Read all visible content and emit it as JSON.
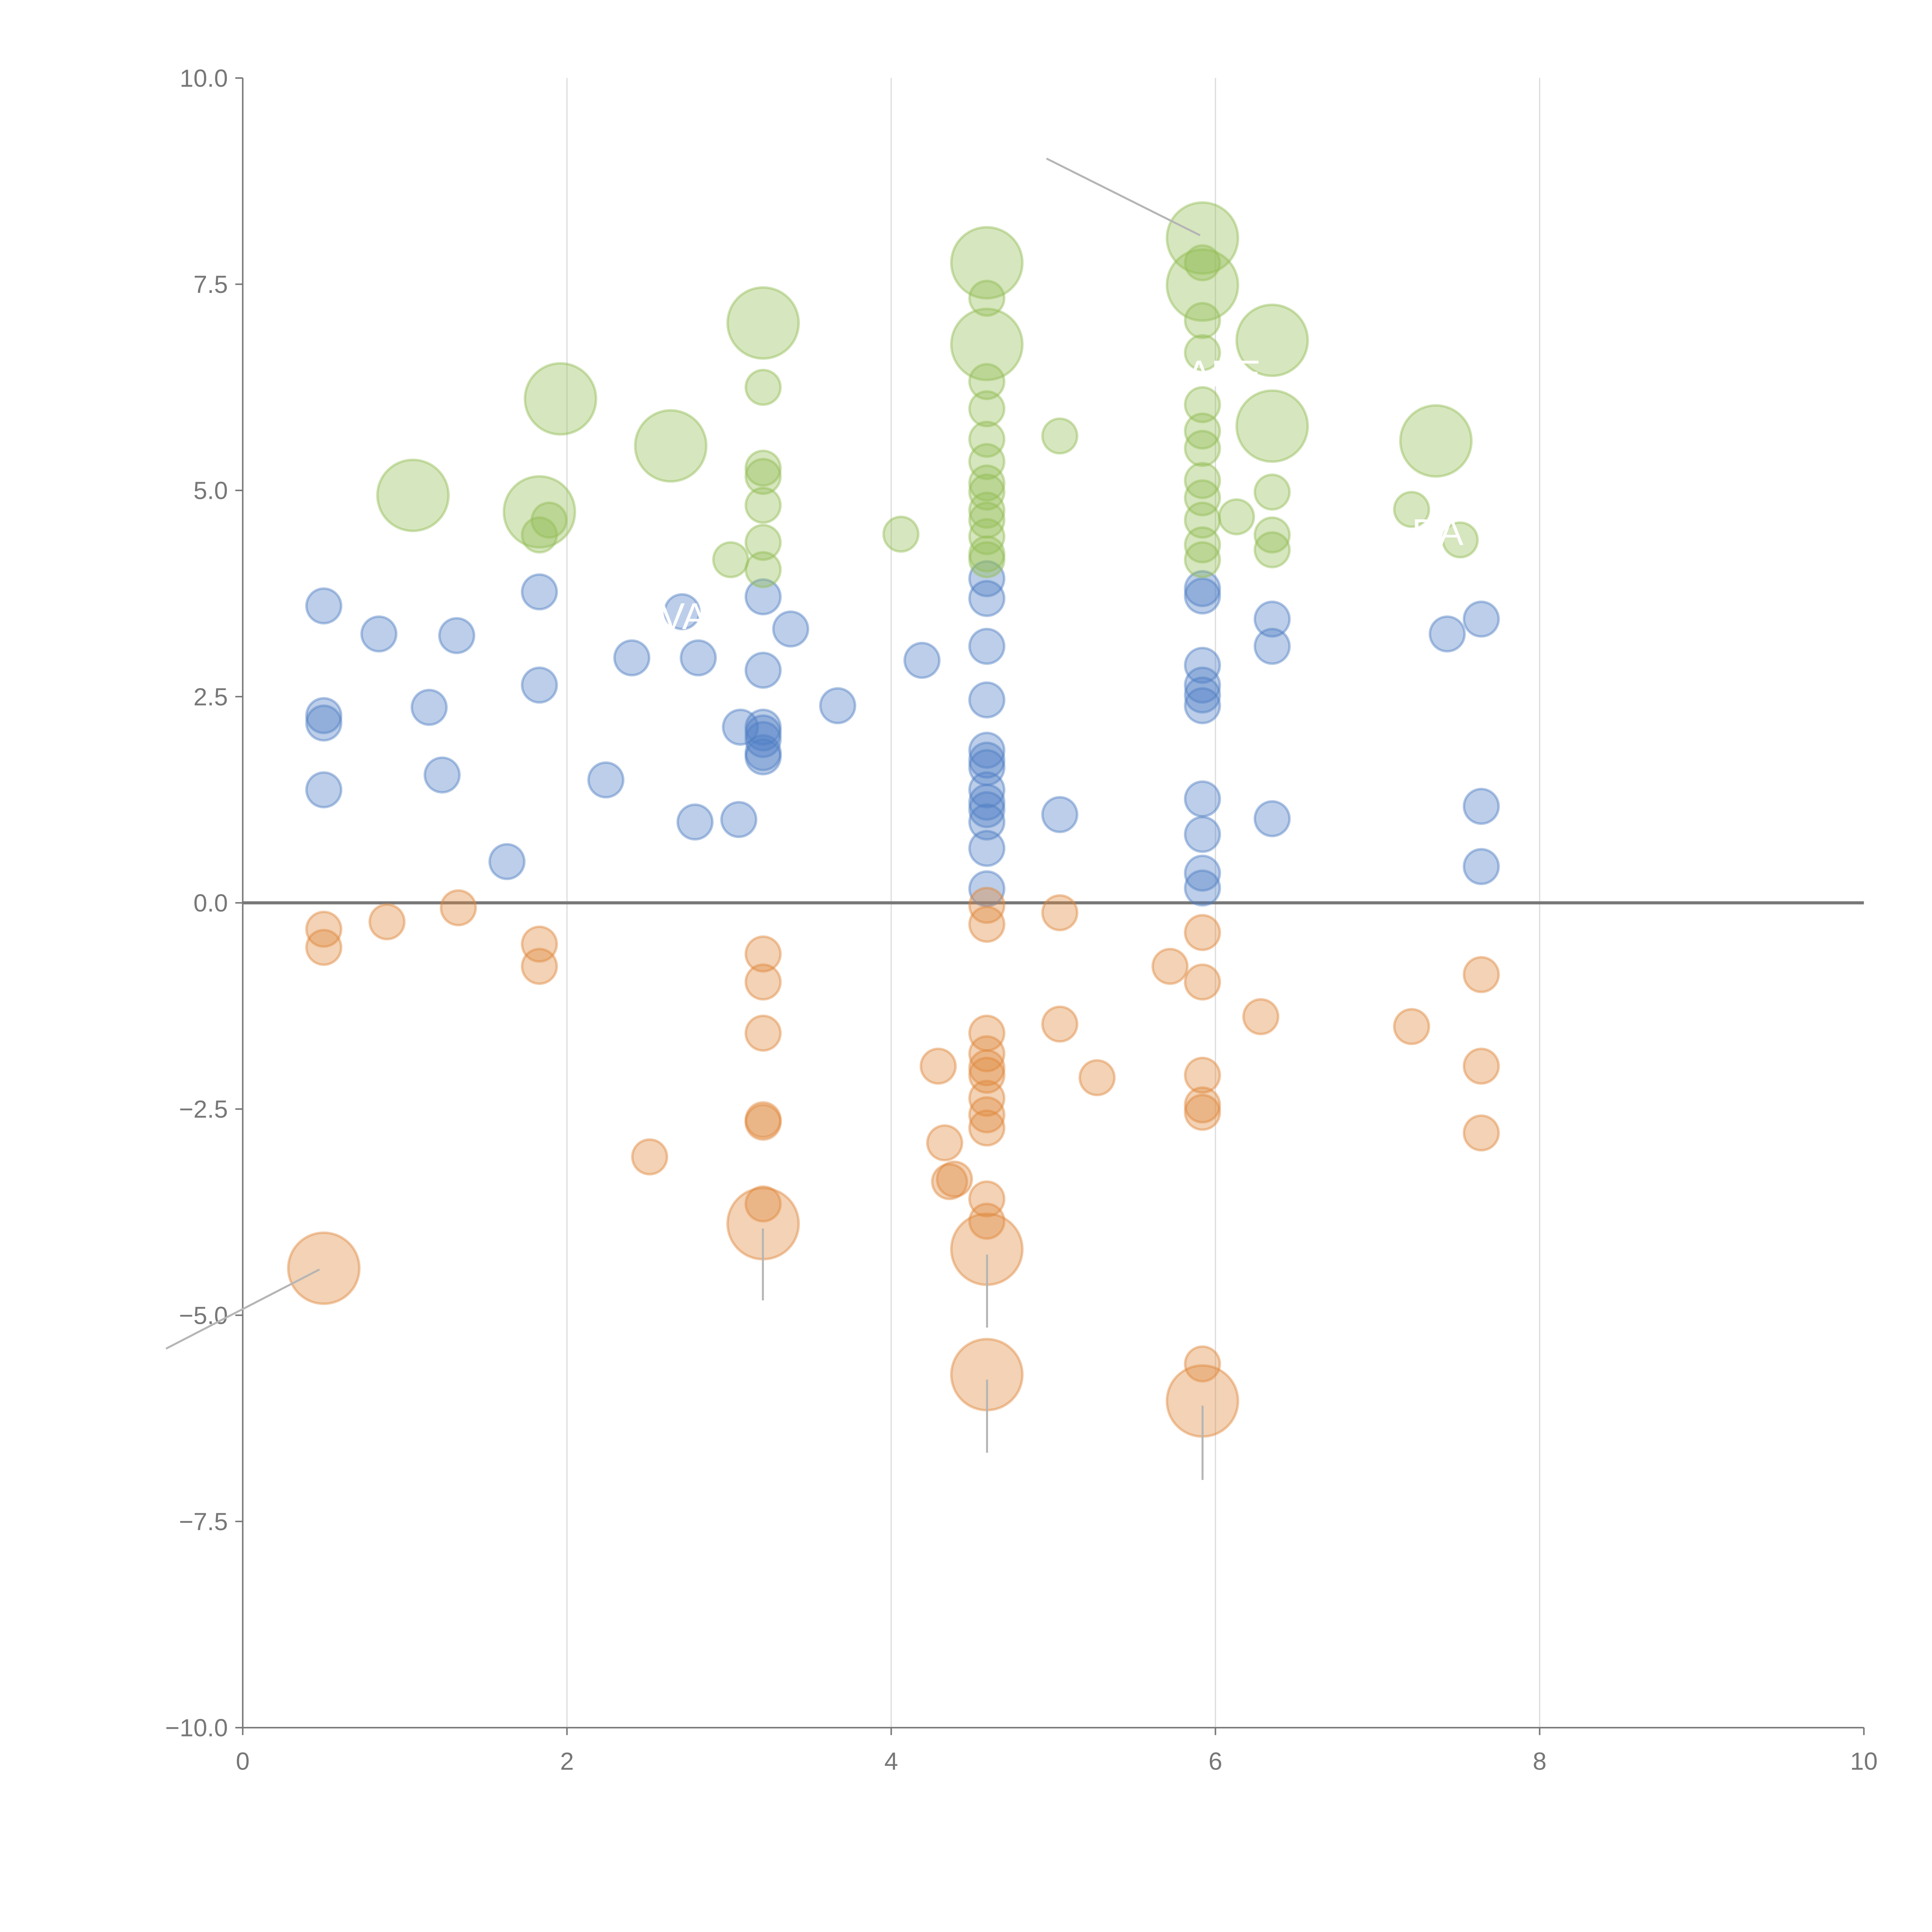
{
  "chart_data": {
    "type": "scatter",
    "subtype": "bubble",
    "title": "",
    "xlabel": "",
    "ylabel": "",
    "xlim": [
      0,
      10
    ],
    "ylim": [
      -10,
      10
    ],
    "xticks": [
      0,
      2,
      4,
      6,
      8,
      10
    ],
    "xtick_labels": [
      "0",
      "2",
      "4",
      "6",
      "8",
      "10"
    ],
    "yticks": [
      10,
      7.5,
      5,
      2.5,
      0,
      -2.5,
      -5,
      -7.5,
      -10
    ],
    "ytick_labels": [
      "10.0",
      "7.5",
      "5.0",
      "2.5",
      "0.0",
      "−2.5",
      "−5.0",
      "−7.5",
      "−10.0"
    ],
    "grid": "vertical",
    "legend": "none",
    "annotations": [
      "ABE",
      "DA",
      "VA"
    ],
    "series": [
      {
        "name": "blue",
        "color": "#4f7ec4",
        "points": [
          [
            0.5,
            3.6,
            1
          ],
          [
            0.5,
            2.27,
            1
          ],
          [
            0.5,
            2.18,
            1
          ],
          [
            0.5,
            1.37,
            1
          ],
          [
            0.84,
            3.26,
            1
          ],
          [
            1.32,
            3.24,
            1
          ],
          [
            1.15,
            2.37,
            1
          ],
          [
            1.23,
            1.55,
            1
          ],
          [
            1.63,
            0.5,
            1
          ],
          [
            1.83,
            3.77,
            1
          ],
          [
            1.83,
            2.64,
            1
          ],
          [
            2.24,
            1.49,
            1
          ],
          [
            2.4,
            2.97,
            1
          ],
          [
            2.71,
            3.53,
            1
          ],
          [
            2.81,
            2.97,
            1
          ],
          [
            2.79,
            0.98,
            1
          ],
          [
            3.06,
            1.01,
            1
          ],
          [
            3.07,
            2.13,
            1
          ],
          [
            3.21,
            3.71,
            1
          ],
          [
            3.21,
            2.82,
            1
          ],
          [
            3.21,
            2.13,
            1
          ],
          [
            3.21,
            2.06,
            1
          ],
          [
            3.21,
            1.98,
            1
          ],
          [
            3.21,
            1.82,
            1
          ],
          [
            3.21,
            1.77,
            1
          ],
          [
            3.38,
            3.32,
            1
          ],
          [
            3.67,
            2.39,
            1
          ],
          [
            4.19,
            2.94,
            1
          ],
          [
            4.59,
            3.93,
            1
          ],
          [
            4.59,
            3.69,
            1
          ],
          [
            4.59,
            3.11,
            1
          ],
          [
            4.59,
            2.46,
            1
          ],
          [
            4.59,
            1.85,
            1
          ],
          [
            4.59,
            1.73,
            1
          ],
          [
            4.59,
            1.64,
            1
          ],
          [
            4.59,
            1.37,
            1
          ],
          [
            4.59,
            1.22,
            1
          ],
          [
            4.59,
            1.13,
            1
          ],
          [
            4.59,
            0.98,
            1
          ],
          [
            4.59,
            0.66,
            1
          ],
          [
            4.59,
            0.17,
            1
          ],
          [
            5.04,
            1.07,
            1
          ],
          [
            5.92,
            3.81,
            1
          ],
          [
            5.92,
            3.72,
            1
          ],
          [
            5.92,
            2.88,
            1
          ],
          [
            5.92,
            2.64,
            1
          ],
          [
            5.92,
            2.52,
            1
          ],
          [
            5.92,
            2.39,
            1
          ],
          [
            5.92,
            1.26,
            1
          ],
          [
            5.92,
            0.83,
            1
          ],
          [
            5.92,
            0.36,
            1
          ],
          [
            5.92,
            0.18,
            1
          ],
          [
            6.35,
            3.44,
            1
          ],
          [
            6.35,
            3.11,
            1
          ],
          [
            6.35,
            1.02,
            1
          ],
          [
            7.43,
            3.26,
            1
          ],
          [
            7.64,
            3.44,
            1
          ],
          [
            7.64,
            1.17,
            1
          ],
          [
            7.64,
            0.44,
            1
          ]
        ]
      },
      {
        "name": "green",
        "color": "#93bd55",
        "points": [
          [
            1.05,
            4.94,
            4.2
          ],
          [
            1.83,
            4.74,
            4.2
          ],
          [
            1.96,
            6.11,
            4.2
          ],
          [
            2.64,
            5.54,
            4.2
          ],
          [
            3.21,
            7.03,
            4.2
          ],
          [
            4.59,
            7.76,
            4.2
          ],
          [
            4.59,
            6.77,
            4.2
          ],
          [
            5.92,
            8.06,
            4.2
          ],
          [
            5.92,
            7.49,
            4.2
          ],
          [
            6.35,
            6.82,
            4.2
          ],
          [
            6.35,
            5.78,
            4.2
          ],
          [
            7.36,
            5.6,
            4.2
          ],
          [
            1.89,
            4.64,
            1
          ],
          [
            1.83,
            4.46,
            1
          ],
          [
            3.01,
            4.16,
            1
          ],
          [
            3.21,
            6.25,
            1
          ],
          [
            3.21,
            5.27,
            1
          ],
          [
            3.21,
            5.17,
            1
          ],
          [
            3.21,
            4.82,
            1
          ],
          [
            3.21,
            4.37,
            1
          ],
          [
            3.21,
            4.04,
            1
          ],
          [
            4.06,
            4.47,
            1
          ],
          [
            4.59,
            7.33,
            1
          ],
          [
            4.59,
            6.32,
            1
          ],
          [
            4.59,
            5.99,
            1
          ],
          [
            4.59,
            5.62,
            1
          ],
          [
            4.59,
            5.35,
            1
          ],
          [
            4.59,
            5.09,
            1
          ],
          [
            4.59,
            4.98,
            1
          ],
          [
            4.59,
            4.76,
            1
          ],
          [
            4.59,
            4.64,
            1
          ],
          [
            4.59,
            4.44,
            1
          ],
          [
            4.59,
            4.23,
            1
          ],
          [
            4.59,
            4.16,
            1
          ],
          [
            5.04,
            5.66,
            1
          ],
          [
            5.92,
            7.76,
            1
          ],
          [
            5.92,
            7.06,
            1
          ],
          [
            5.92,
            6.67,
            1
          ],
          [
            5.92,
            6.04,
            1
          ],
          [
            5.92,
            5.72,
            1
          ],
          [
            5.92,
            5.51,
            1
          ],
          [
            5.92,
            5.12,
            1
          ],
          [
            5.92,
            4.91,
            1
          ],
          [
            5.92,
            4.64,
            1
          ],
          [
            5.92,
            4.34,
            1
          ],
          [
            5.92,
            4.16,
            1
          ],
          [
            6.13,
            4.68,
            1
          ],
          [
            6.35,
            4.98,
            1
          ],
          [
            6.35,
            4.46,
            1
          ],
          [
            6.35,
            4.28,
            1
          ],
          [
            7.21,
            4.77,
            1
          ],
          [
            7.51,
            4.4,
            1
          ]
        ]
      },
      {
        "name": "orange",
        "color": "#e0883c",
        "points": [
          [
            0.5,
            -4.43,
            4.2
          ],
          [
            3.21,
            -3.89,
            4.2
          ],
          [
            4.59,
            -4.2,
            4.2
          ],
          [
            4.59,
            -5.72,
            4.2
          ],
          [
            5.92,
            -6.04,
            4.2
          ],
          [
            0.5,
            -0.32,
            1
          ],
          [
            0.5,
            -0.54,
            1
          ],
          [
            0.89,
            -0.23,
            1
          ],
          [
            1.33,
            -0.06,
            1
          ],
          [
            1.83,
            -0.5,
            1
          ],
          [
            1.83,
            -0.77,
            1
          ],
          [
            2.51,
            -3.08,
            1
          ],
          [
            3.21,
            -0.62,
            1
          ],
          [
            3.21,
            -0.96,
            1
          ],
          [
            3.21,
            -1.58,
            1
          ],
          [
            3.21,
            -2.63,
            1
          ],
          [
            3.21,
            -2.66,
            1
          ],
          [
            3.21,
            -3.65,
            1
          ],
          [
            4.29,
            -1.98,
            1
          ],
          [
            4.33,
            -2.91,
            1
          ],
          [
            4.36,
            -3.38,
            1
          ],
          [
            4.39,
            -3.35,
            1
          ],
          [
            4.59,
            -0.03,
            1
          ],
          [
            4.59,
            -0.26,
            1
          ],
          [
            4.59,
            -1.58,
            1
          ],
          [
            4.59,
            -1.83,
            1
          ],
          [
            4.59,
            -2.0,
            1
          ],
          [
            4.59,
            -2.09,
            1
          ],
          [
            4.59,
            -2.37,
            1
          ],
          [
            4.59,
            -2.57,
            1
          ],
          [
            4.59,
            -2.73,
            1
          ],
          [
            4.59,
            -3.59,
            1
          ],
          [
            4.59,
            -3.86,
            1
          ],
          [
            5.04,
            -0.12,
            1
          ],
          [
            5.04,
            -1.47,
            1
          ],
          [
            5.27,
            -2.12,
            1
          ],
          [
            5.72,
            -0.77,
            1
          ],
          [
            5.92,
            -0.36,
            1
          ],
          [
            5.92,
            -0.96,
            1
          ],
          [
            5.92,
            -2.09,
            1
          ],
          [
            5.92,
            -2.45,
            1
          ],
          [
            5.92,
            -2.54,
            1
          ],
          [
            5.92,
            -5.59,
            1
          ],
          [
            6.28,
            -1.38,
            1
          ],
          [
            7.21,
            -1.5,
            1
          ],
          [
            7.64,
            -0.87,
            1
          ],
          [
            7.64,
            -1.98,
            1
          ],
          [
            7.64,
            -2.79,
            1
          ]
        ]
      }
    ]
  }
}
